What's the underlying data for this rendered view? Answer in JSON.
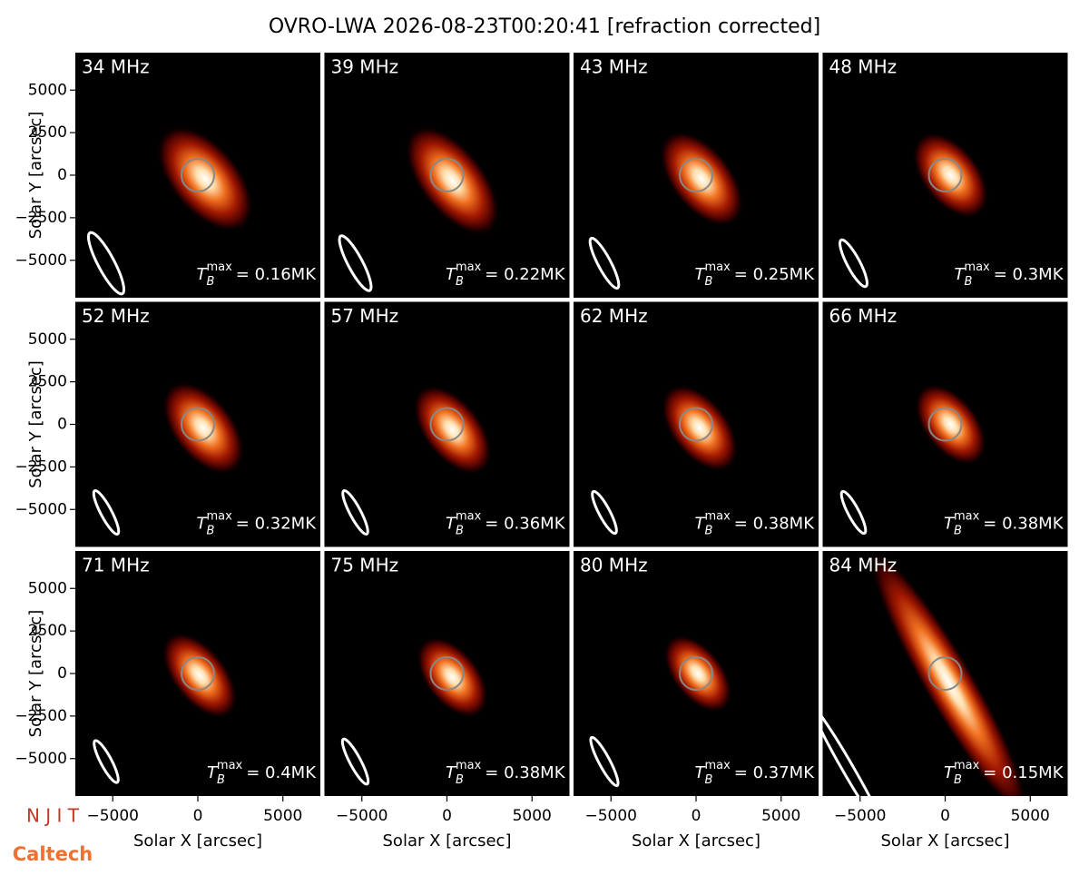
{
  "title": "OVRO-LWA 2026-08-23T00:20:41 [refraction corrected]",
  "logos": {
    "njit": "N J I T",
    "caltech": "Caltech"
  },
  "tb_symbol": {
    "base": "T",
    "sub": "B",
    "sup": "max"
  },
  "chart_data": [
    {
      "type": "image",
      "title": "34 MHz",
      "annotation": "= 0.16MK",
      "xlim": [
        -7200,
        7200
      ],
      "ylim": [
        -7200,
        7200
      ],
      "ylabel": "Solar Y [arcsec]",
      "yticks": [
        {
          "value": -5000,
          "label": "−5000"
        },
        {
          "value": -2500,
          "label": "−2500"
        },
        0,
        2500,
        5000
      ]
    },
    {
      "type": "image",
      "title": "39 MHz",
      "annotation": "= 0.22MK",
      "xlim": [
        -7200,
        7200
      ],
      "ylim": [
        -7200,
        7200
      ]
    },
    {
      "type": "image",
      "title": "43 MHz",
      "annotation": "= 0.25MK",
      "xlim": [
        -7200,
        7200
      ],
      "ylim": [
        -7200,
        7200
      ]
    },
    {
      "type": "image",
      "title": "48 MHz",
      "annotation": "= 0.3MK",
      "xlim": [
        -7200,
        7200
      ],
      "ylim": [
        -7200,
        7200
      ]
    },
    {
      "type": "image",
      "title": "52 MHz",
      "annotation": "= 0.32MK",
      "xlim": [
        -7200,
        7200
      ],
      "ylim": [
        -7200,
        7200
      ],
      "ylabel": "Solar Y [arcsec]",
      "yticks": [
        {
          "value": -5000,
          "label": "−5000"
        },
        {
          "value": -2500,
          "label": "−2500"
        },
        0,
        2500,
        5000
      ]
    },
    {
      "type": "image",
      "title": "57 MHz",
      "annotation": "= 0.36MK",
      "xlim": [
        -7200,
        7200
      ],
      "ylim": [
        -7200,
        7200
      ]
    },
    {
      "type": "image",
      "title": "62 MHz",
      "annotation": "= 0.38MK",
      "xlim": [
        -7200,
        7200
      ],
      "ylim": [
        -7200,
        7200
      ]
    },
    {
      "type": "image",
      "title": "66 MHz",
      "annotation": "= 0.38MK",
      "xlim": [
        -7200,
        7200
      ],
      "ylim": [
        -7200,
        7200
      ]
    },
    {
      "type": "image",
      "title": "71 MHz",
      "annotation": "= 0.4MK",
      "xlim": [
        -7200,
        7200
      ],
      "ylim": [
        -7200,
        7200
      ],
      "ylabel": "Solar Y [arcsec]",
      "yticks": [
        {
          "value": -5000,
          "label": "−5000"
        },
        {
          "value": -2500,
          "label": "−2500"
        },
        0,
        2500,
        5000
      ],
      "xlabel": "Solar X [arcsec]",
      "xticks": [
        {
          "value": -5000,
          "label": "−5000"
        },
        0,
        5000
      ]
    },
    {
      "type": "image",
      "title": "75 MHz",
      "annotation": "= 0.38MK",
      "xlim": [
        -7200,
        7200
      ],
      "ylim": [
        -7200,
        7200
      ],
      "xlabel": "Solar X [arcsec]",
      "xticks": [
        {
          "value": -5000,
          "label": "−5000"
        },
        0,
        5000
      ]
    },
    {
      "type": "image",
      "title": "80 MHz",
      "annotation": "= 0.37MK",
      "xlim": [
        -7200,
        7200
      ],
      "ylim": [
        -7200,
        7200
      ],
      "xlabel": "Solar X [arcsec]",
      "xticks": [
        {
          "value": -5000,
          "label": "−5000"
        },
        0,
        5000
      ]
    },
    {
      "type": "image",
      "title": "84 MHz",
      "annotation": "= 0.15MK",
      "xlim": [
        -7200,
        7200
      ],
      "ylim": [
        -7200,
        7200
      ],
      "xlabel": "Solar X [arcsec]",
      "xticks": [
        {
          "value": -5000,
          "label": "−5000"
        },
        0,
        5000
      ]
    }
  ]
}
